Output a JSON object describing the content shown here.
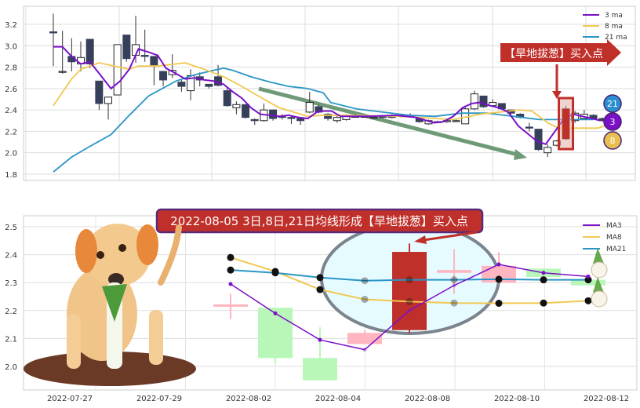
{
  "chart_data": [
    {
      "type": "candlestick",
      "ylim": [
        1.76,
        3.37
      ],
      "yticks": [
        "1.8",
        "2.0",
        "2.2",
        "2.4",
        "2.6",
        "2.8",
        "3.0",
        "3.2"
      ],
      "grid": true,
      "legend_placement": "top-right",
      "legend": [
        "3 ma",
        "8 ma",
        "21 ma"
      ],
      "colors": {
        "down": "#36405a",
        "up": "#ffffff",
        "ma3": "#7a10c8",
        "ma8": "#f0c850",
        "ma21": "#2a95c5",
        "annotation": "#c0302a",
        "trend": "#6f9a78"
      },
      "candles_ohlc": [
        [
          3.13,
          3.12,
          3.3,
          2.81
        ],
        [
          2.76,
          2.76,
          3.14,
          2.74
        ],
        [
          2.9,
          2.85,
          3.07,
          2.76
        ],
        [
          2.83,
          2.89,
          3.04,
          2.76
        ],
        [
          3.06,
          2.83,
          3.06,
          2.79
        ],
        [
          2.67,
          2.46,
          2.67,
          2.4
        ],
        [
          2.46,
          2.52,
          2.52,
          2.31
        ],
        [
          2.54,
          3.01,
          3.01,
          2.54
        ],
        [
          3.1,
          2.88,
          3.1,
          2.85
        ],
        [
          2.91,
          3.01,
          3.28,
          2.84
        ],
        [
          2.91,
          2.9,
          3.15,
          2.85
        ],
        [
          2.9,
          2.82,
          2.9,
          2.63
        ],
        [
          2.76,
          2.68,
          2.76,
          2.62
        ],
        [
          2.73,
          2.77,
          2.92,
          2.7
        ],
        [
          2.66,
          2.62,
          2.68,
          2.57
        ],
        [
          2.58,
          2.72,
          2.78,
          2.49
        ],
        [
          2.71,
          2.68,
          2.75,
          2.62
        ],
        [
          2.64,
          2.62,
          2.64,
          2.6
        ],
        [
          2.71,
          2.63,
          2.82,
          2.62
        ],
        [
          2.58,
          2.44,
          2.62,
          2.43
        ],
        [
          2.42,
          2.45,
          2.48,
          2.36
        ],
        [
          2.45,
          2.33,
          2.45,
          2.32
        ],
        [
          2.31,
          2.3,
          2.32,
          2.26
        ],
        [
          2.3,
          2.4,
          2.46,
          2.29
        ],
        [
          2.4,
          2.32,
          2.4,
          2.3
        ],
        [
          2.34,
          2.33,
          2.36,
          2.31
        ],
        [
          2.33,
          2.32,
          2.35,
          2.27
        ],
        [
          2.32,
          2.3,
          2.32,
          2.26
        ],
        [
          2.38,
          2.47,
          2.57,
          2.37
        ],
        [
          2.43,
          2.38,
          2.45,
          2.37
        ],
        [
          2.36,
          2.32,
          2.37,
          2.3
        ],
        [
          2.3,
          2.33,
          2.35,
          2.28
        ],
        [
          2.31,
          2.35,
          2.36,
          2.3
        ],
        [
          2.34,
          2.34,
          2.36,
          2.33
        ],
        [
          2.34,
          2.34,
          2.35,
          2.33
        ],
        [
          2.33,
          2.33,
          2.34,
          2.32
        ],
        [
          2.34,
          2.33,
          2.35,
          2.32
        ],
        [
          2.33,
          2.34,
          2.36,
          2.32
        ],
        [
          2.35,
          2.34,
          2.36,
          2.33
        ],
        [
          2.35,
          2.35,
          2.37,
          2.34
        ],
        [
          2.32,
          2.29,
          2.33,
          2.28
        ],
        [
          2.27,
          2.3,
          2.31,
          2.26
        ],
        [
          2.29,
          2.29,
          2.3,
          2.28
        ],
        [
          2.29,
          2.3,
          2.31,
          2.28
        ],
        [
          2.3,
          2.3,
          2.31,
          2.29
        ],
        [
          2.27,
          2.41,
          2.44,
          2.27
        ],
        [
          2.41,
          2.55,
          2.58,
          2.4
        ],
        [
          2.53,
          2.43,
          2.53,
          2.42
        ],
        [
          2.44,
          2.47,
          2.5,
          2.43
        ],
        [
          2.46,
          2.41,
          2.46,
          2.4
        ],
        [
          2.4,
          2.37,
          2.4,
          2.36
        ],
        [
          2.36,
          2.33,
          2.37,
          2.32
        ],
        [
          2.24,
          2.23,
          2.28,
          2.2
        ],
        [
          2.22,
          2.03,
          2.22,
          2.02
        ],
        [
          2.0,
          2.05,
          2.08,
          1.96
        ],
        [
          2.07,
          2.11,
          2.12,
          2.06
        ],
        [
          2.13,
          2.41,
          2.44,
          2.12
        ],
        [
          2.3,
          2.37,
          2.39,
          2.28
        ],
        [
          2.32,
          2.36,
          2.4,
          2.31
        ],
        [
          2.35,
          2.32,
          2.36,
          2.31
        ],
        [
          2.32,
          2.3,
          2.33,
          2.29
        ]
      ],
      "highlight_bar": 57,
      "ma_series": [
        {
          "name": "3 ma",
          "points": [
            [
              1,
              2.99
            ],
            [
              2,
              2.99
            ],
            [
              3,
              2.9
            ],
            [
              4,
              2.83
            ],
            [
              5,
              2.85
            ],
            [
              7.3,
              2.6
            ],
            [
              8.3,
              2.67
            ],
            [
              9.3,
              2.78
            ],
            [
              10.3,
              2.97
            ],
            [
              11.4,
              2.94
            ],
            [
              12.4,
              2.91
            ],
            [
              13.3,
              2.79
            ],
            [
              14.4,
              2.74
            ],
            [
              15.4,
              2.69
            ],
            [
              16.5,
              2.7
            ],
            [
              17.5,
              2.68
            ],
            [
              18.5,
              2.67
            ],
            [
              19.6,
              2.64
            ],
            [
              20.6,
              2.57
            ],
            [
              21.6,
              2.51
            ],
            [
              22.6,
              2.42
            ],
            [
              23.6,
              2.36
            ],
            [
              24.7,
              2.35
            ],
            [
              25.7,
              2.34
            ],
            [
              26.7,
              2.35
            ],
            [
              27.8,
              2.33
            ],
            [
              28.8,
              2.32
            ],
            [
              29.8,
              2.38
            ],
            [
              30.4,
              2.39
            ],
            [
              31.4,
              2.39
            ],
            [
              32.4,
              2.34
            ],
            [
              35.4,
              2.34
            ],
            [
              38.4,
              2.35
            ],
            [
              40.6,
              2.33
            ],
            [
              42.6,
              2.28
            ],
            [
              43.6,
              2.29
            ],
            [
              44.7,
              2.34
            ],
            [
              45.7,
              2.42
            ],
            [
              46.7,
              2.46
            ],
            [
              47.6,
              2.47
            ],
            [
              48.7,
              2.44
            ],
            [
              49.7,
              2.42
            ],
            [
              50.7,
              2.38
            ],
            [
              51.8,
              2.25
            ],
            [
              52.8,
              2.18
            ],
            [
              53.8,
              2.11
            ],
            [
              54.8,
              2.08
            ],
            [
              55.8,
              2.2
            ],
            [
              56.8,
              2.32
            ],
            [
              57.8,
              2.36
            ],
            [
              58.8,
              2.34
            ],
            [
              59.8,
              2.32
            ],
            [
              60.8,
              2.3
            ]
          ]
        },
        {
          "name": "8 ma",
          "points": [
            [
              1,
              2.44
            ],
            [
              3,
              2.69
            ],
            [
              4,
              2.78
            ],
            [
              6,
              2.84
            ],
            [
              8.2,
              2.8
            ],
            [
              9.3,
              2.78
            ],
            [
              10.3,
              2.81
            ],
            [
              12.4,
              2.81
            ],
            [
              14.4,
              2.83
            ],
            [
              15.4,
              2.84
            ],
            [
              17.5,
              2.78
            ],
            [
              19.6,
              2.71
            ],
            [
              21.6,
              2.62
            ],
            [
              23.6,
              2.52
            ],
            [
              25.7,
              2.42
            ],
            [
              28.8,
              2.34
            ],
            [
              30.4,
              2.35
            ],
            [
              33.3,
              2.35
            ],
            [
              39,
              2.34
            ],
            [
              44.7,
              2.31
            ],
            [
              47.6,
              2.36
            ],
            [
              51.9,
              2.4
            ],
            [
              53.3,
              2.39
            ],
            [
              55,
              2.28
            ],
            [
              56.2,
              2.23
            ],
            [
              57.9,
              2.23
            ],
            [
              60.5,
              2.23
            ],
            [
              62.1,
              2.28
            ]
          ]
        },
        {
          "name": "21 ma",
          "points": [
            [
              1,
              1.82
            ],
            [
              3,
              1.96
            ],
            [
              5,
              2.06
            ],
            [
              7.3,
              2.17
            ],
            [
              9.3,
              2.35
            ],
            [
              11.4,
              2.53
            ],
            [
              14.4,
              2.67
            ],
            [
              16.5,
              2.73
            ],
            [
              18.5,
              2.77
            ],
            [
              19.6,
              2.79
            ],
            [
              20.6,
              2.77
            ],
            [
              22.6,
              2.71
            ],
            [
              24.7,
              2.66
            ],
            [
              26.7,
              2.62
            ],
            [
              28.8,
              2.6
            ],
            [
              30.5,
              2.56
            ],
            [
              31.3,
              2.47
            ],
            [
              34.1,
              2.41
            ],
            [
              37,
              2.38
            ],
            [
              39.9,
              2.35
            ],
            [
              42.7,
              2.34
            ],
            [
              45.6,
              2.37
            ],
            [
              48.4,
              2.37
            ],
            [
              51.3,
              2.34
            ],
            [
              54.1,
              2.31
            ],
            [
              57,
              2.31
            ],
            [
              60,
              2.31
            ]
          ]
        }
      ],
      "annotations": {
        "buy_label": "【旱地拔葱】买入点",
        "badges": [
          {
            "text": "21",
            "color": "#2a8fd0"
          },
          {
            "text": "3",
            "color": "#7a10c8"
          },
          {
            "text": "8",
            "color": "#e8c050"
          }
        ]
      }
    },
    {
      "type": "candlestick",
      "title": "2022-08-05 3日,8日,21日均线形成【旱地拔葱】买入点",
      "ylim": [
        1.93,
        2.54
      ],
      "yticks": [
        "2.0",
        "2.1",
        "2.2",
        "2.3",
        "2.4",
        "2.5"
      ],
      "xticks": [
        "2022-07-27",
        "2022-07-29",
        "2022-08-02",
        "2022-08-04",
        "2022-08-08",
        "2022-08-10",
        "2022-08-12"
      ],
      "grid": true,
      "legend_placement": "top-right",
      "legend": [
        "MA3",
        "MA8",
        "MA21"
      ],
      "colors": {
        "up": "#ffb6c1",
        "down": "#b8f7b8",
        "signal": "#c0302a",
        "ma3": "#7a10c8",
        "ma8": "#f0c850",
        "ma21": "#2a95c5",
        "ellipse_fill": "#e6fbff",
        "ellipse_stroke": "#7c858d",
        "title_bg": "#c0302a",
        "title_border": "#5a2a7a"
      },
      "candles_ohlc": [
        [
          2.215,
          2.222,
          2.26,
          2.17
        ],
        [
          2.21,
          2.03,
          2.21,
          2.01
        ],
        [
          2.03,
          1.95,
          2.14,
          1.95
        ],
        [
          2.08,
          2.12,
          2.13,
          2.08
        ],
        [
          2.13,
          2.41,
          2.44,
          2.12
        ],
        [
          2.335,
          2.345,
          2.42,
          2.26
        ],
        [
          2.3,
          2.36,
          2.41,
          2.3
        ],
        [
          2.35,
          2.32,
          2.35,
          2.32
        ],
        [
          2.31,
          2.29,
          2.31,
          2.29
        ]
      ],
      "signal_bar": 4,
      "ma3": [
        2.295,
        2.19,
        2.095,
        2.06,
        2.2,
        2.29,
        2.365,
        2.335,
        2.322
      ],
      "ma8": [
        2.39,
        2.34,
        2.275,
        2.24,
        2.232,
        2.227,
        2.226,
        2.227,
        2.235
      ],
      "ma21": [
        2.345,
        2.335,
        2.318,
        2.307,
        2.31,
        2.31,
        2.312,
        2.31,
        2.31
      ]
    }
  ]
}
